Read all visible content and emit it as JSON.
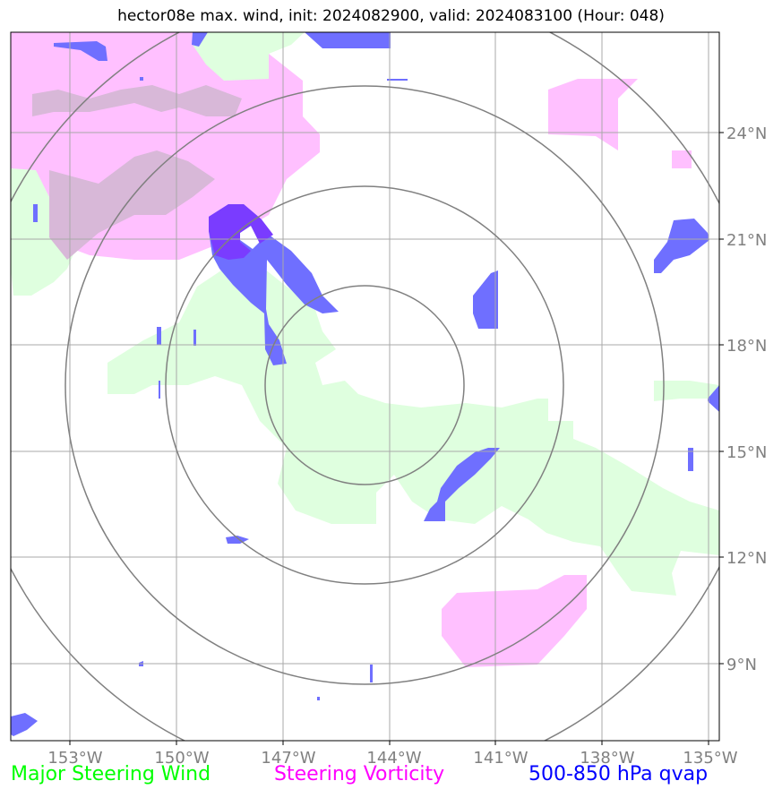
{
  "title": "hector08e max. wind, init: 2024082900, valid: 2024083100 (Hour: 048)",
  "map": {
    "lon_ticks": [
      "153°W",
      "150°W",
      "147°W",
      "144°W",
      "141°W",
      "138°W",
      "135°W"
    ],
    "lat_ticks": [
      "24°N",
      "21°N",
      "18°N",
      "15°N",
      "12°N",
      "9°N"
    ],
    "grid": true,
    "range_rings": 4
  },
  "legend": {
    "steering_wind": "Major Steering Wind",
    "steering_vorticity": "Steering Vorticity",
    "qvap": "500-850 hPa qvap"
  },
  "colors": {
    "steering_wind": "#00ff00",
    "steering_vorticity": "#ff00ff",
    "qvap": "#0000ff",
    "wind_fill": "#dfffdf",
    "vorticity_fill": "#ffc0ff",
    "qvap_fill": "#6f6fff",
    "overlap_fill": "#d8b8d8"
  }
}
